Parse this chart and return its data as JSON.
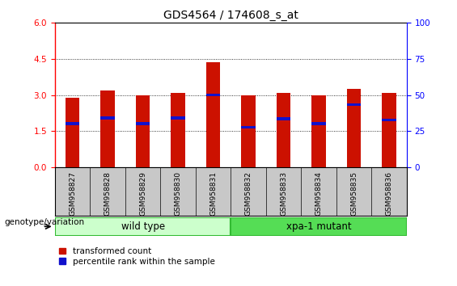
{
  "title": "GDS4564 / 174608_s_at",
  "samples": [
    "GSM958827",
    "GSM958828",
    "GSM958829",
    "GSM958830",
    "GSM958831",
    "GSM958832",
    "GSM958833",
    "GSM958834",
    "GSM958835",
    "GSM958836"
  ],
  "transformed_counts": [
    2.9,
    3.2,
    3.0,
    3.1,
    4.35,
    3.0,
    3.1,
    3.0,
    3.25,
    3.1
  ],
  "percentile_ranks": [
    1.75,
    2.0,
    1.75,
    2.0,
    2.95,
    1.6,
    1.95,
    1.75,
    2.55,
    1.9
  ],
  "percentile_bar_height": 0.12,
  "ylim_left": [
    0,
    6
  ],
  "ylim_right": [
    0,
    100
  ],
  "yticks_left": [
    0,
    1.5,
    3.0,
    4.5,
    6.0
  ],
  "yticks_right": [
    0,
    25,
    50,
    75,
    100
  ],
  "bar_color": "#cc1100",
  "percentile_color": "#1111cc",
  "grid_color": "#000000",
  "wild_type_label": "wild type",
  "mutant_label": "xpa-1 mutant",
  "wild_type_color": "#ccffcc",
  "mutant_color": "#55dd55",
  "genotype_label": "genotype/variation",
  "legend_tc": "transformed count",
  "legend_pr": "percentile rank within the sample",
  "bar_width": 0.4,
  "title_fontsize": 10,
  "tick_fontsize": 7.5,
  "xtick_fontsize": 6.5,
  "label_fontsize": 8
}
